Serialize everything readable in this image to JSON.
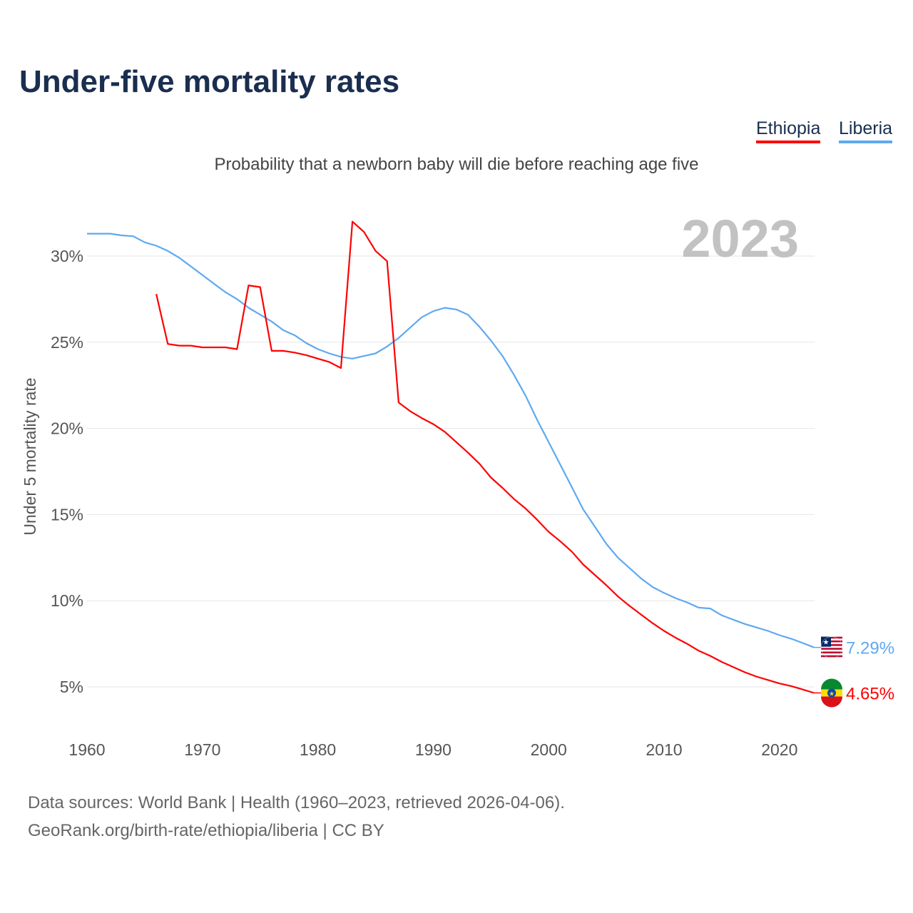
{
  "title": "Under-five mortality rates",
  "subtitle": "Probability that a newborn baby will die before reaching age five",
  "legend": [
    {
      "label": "Ethiopia",
      "color": "#ff0000"
    },
    {
      "label": "Liberia",
      "color": "#5ea9f0"
    }
  ],
  "source": {
    "line1": "Data sources: World Bank | Health (1960–2023, retrieved 2026-04-06).",
    "line2": "GeoRank.org/birth-rate/ethiopia/liberia | CC BY"
  },
  "chart_data": {
    "type": "line",
    "title": "Under-five mortality rates",
    "ylabel": "Under 5 mortality rate",
    "xlabel": "",
    "year_label": "2023",
    "xlim": [
      1960,
      2023
    ],
    "ylim": [
      2.5,
      33
    ],
    "xticks": [
      1960,
      1970,
      1980,
      1990,
      2000,
      2010,
      2020
    ],
    "yticks": [
      {
        "v": 5,
        "label": "5%"
      },
      {
        "v": 10,
        "label": "10%"
      },
      {
        "v": 15,
        "label": "15%"
      },
      {
        "v": 20,
        "label": "20%"
      },
      {
        "v": 25,
        "label": "25%"
      },
      {
        "v": 30,
        "label": "30%"
      }
    ],
    "grid": true,
    "legend_position": "top-right",
    "series": [
      {
        "name": "Liberia",
        "color": "#5ea9f0",
        "end_label": "7.29%",
        "flag": "liberia-flag",
        "x": [
          1960,
          1961,
          1962,
          1963,
          1964,
          1965,
          1966,
          1967,
          1968,
          1969,
          1970,
          1971,
          1972,
          1973,
          1974,
          1975,
          1976,
          1977,
          1978,
          1979,
          1980,
          1981,
          1982,
          1983,
          1984,
          1985,
          1986,
          1987,
          1988,
          1989,
          1990,
          1991,
          1992,
          1993,
          1994,
          1995,
          1996,
          1997,
          1998,
          1999,
          2000,
          2001,
          2002,
          2003,
          2004,
          2005,
          2006,
          2007,
          2008,
          2009,
          2010,
          2011,
          2012,
          2013,
          2014,
          2015,
          2016,
          2017,
          2018,
          2019,
          2020,
          2021,
          2022,
          2023
        ],
        "y": [
          31.3,
          31.3,
          31.3,
          31.2,
          31.15,
          30.8,
          30.6,
          30.3,
          29.9,
          29.4,
          28.9,
          28.4,
          27.9,
          27.5,
          27.0,
          26.6,
          26.2,
          25.7,
          25.4,
          24.95,
          24.6,
          24.35,
          24.15,
          24.05,
          24.2,
          24.35,
          24.75,
          25.25,
          25.85,
          26.45,
          26.8,
          27.0,
          26.9,
          26.6,
          25.9,
          25.1,
          24.2,
          23.1,
          21.9,
          20.5,
          19.2,
          17.9,
          16.6,
          15.3,
          14.3,
          13.3,
          12.5,
          11.9,
          11.3,
          10.8,
          10.45,
          10.15,
          9.9,
          9.6,
          9.55,
          9.15,
          8.9,
          8.65,
          8.45,
          8.25,
          8.0,
          7.8,
          7.55,
          7.29
        ]
      },
      {
        "name": "Ethiopia",
        "color": "#ff0000",
        "end_label": "4.65%",
        "flag": "ethiopia-flag",
        "x": [
          1966,
          1967,
          1968,
          1969,
          1970,
          1971,
          1972,
          1973,
          1974,
          1975,
          1976,
          1977,
          1978,
          1979,
          1980,
          1981,
          1982,
          1983,
          1984,
          1985,
          1986,
          1987,
          1988,
          1989,
          1990,
          1991,
          1992,
          1993,
          1994,
          1995,
          1996,
          1997,
          1998,
          1999,
          2000,
          2001,
          2002,
          2003,
          2004,
          2005,
          2006,
          2007,
          2008,
          2009,
          2010,
          2011,
          2012,
          2013,
          2014,
          2015,
          2016,
          2017,
          2018,
          2019,
          2020,
          2021,
          2022,
          2023
        ],
        "y": [
          27.8,
          24.9,
          24.8,
          24.8,
          24.7,
          24.7,
          24.7,
          24.6,
          28.3,
          28.2,
          24.5,
          24.5,
          24.4,
          24.25,
          24.05,
          23.85,
          23.5,
          32.0,
          31.4,
          30.3,
          29.7,
          21.5,
          21.0,
          20.6,
          20.25,
          19.8,
          19.2,
          18.6,
          17.95,
          17.15,
          16.55,
          15.9,
          15.35,
          14.7,
          14.0,
          13.45,
          12.85,
          12.1,
          11.5,
          10.9,
          10.25,
          9.7,
          9.2,
          8.7,
          8.25,
          7.85,
          7.5,
          7.1,
          6.8,
          6.45,
          6.15,
          5.85,
          5.6,
          5.4,
          5.2,
          5.05,
          4.85,
          4.65
        ]
      }
    ]
  }
}
